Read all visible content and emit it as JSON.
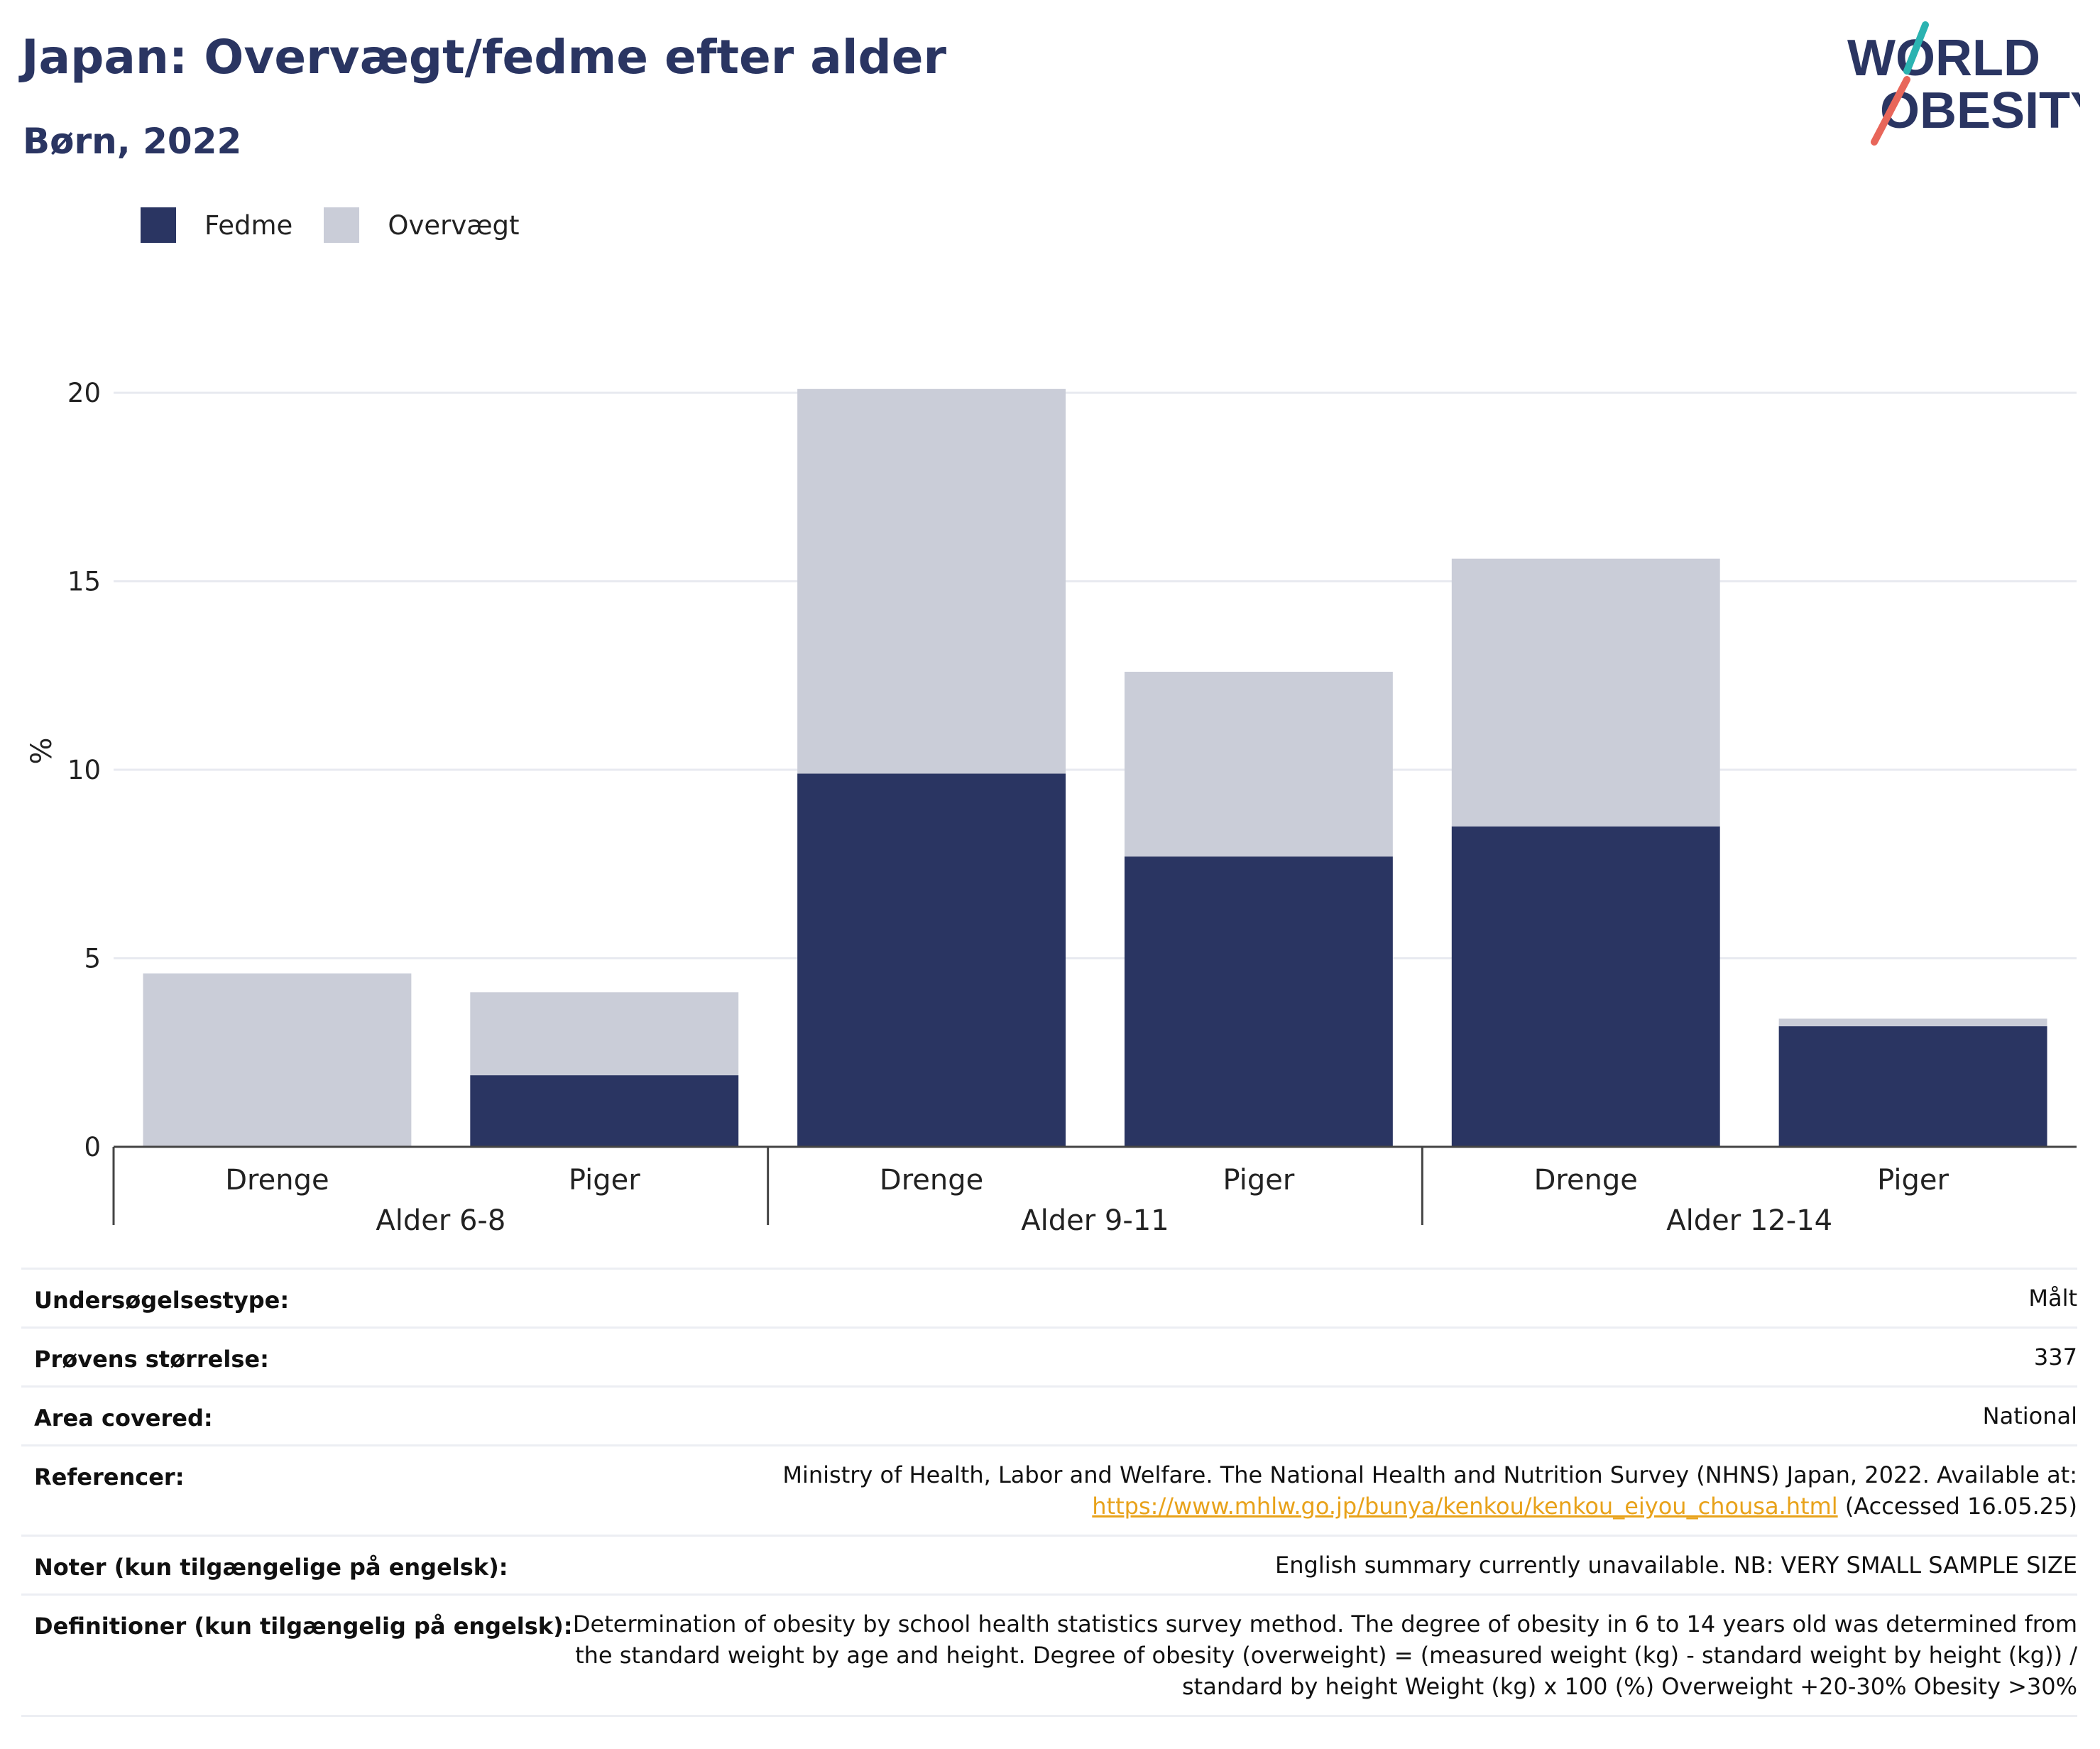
{
  "header": {
    "title": "Japan: Overvægt/fedme efter alder",
    "subtitle": "Børn, 2022",
    "logo_line1": "WORLD",
    "logo_line2": "OBESITY"
  },
  "colors": {
    "fedme": "#2a3562",
    "overvaegt": "#cacdd8",
    "title": "#2a3562",
    "link": "#e8a21a",
    "logo_slash_teal": "#2bb3b1",
    "logo_slash_coral": "#e8665a"
  },
  "chart_data": {
    "type": "bar",
    "stacked": true,
    "ylabel": "%",
    "ylim": [
      0,
      21
    ],
    "yticks": [
      0,
      5,
      10,
      15,
      20
    ],
    "grid": true,
    "legend_position": "top-left",
    "categories": [
      "Drenge",
      "Piger",
      "Drenge",
      "Piger",
      "Drenge",
      "Piger"
    ],
    "groups": [
      {
        "label": "Alder 6-8",
        "span": [
          0,
          1
        ]
      },
      {
        "label": "Alder 9-11",
        "span": [
          2,
          3
        ]
      },
      {
        "label": "Alder 12-14",
        "span": [
          4,
          5
        ]
      }
    ],
    "series": [
      {
        "name": "Fedme",
        "values": [
          0.0,
          1.9,
          9.9,
          7.7,
          8.5,
          3.2
        ]
      },
      {
        "name": "Overvægt",
        "values": [
          4.6,
          2.2,
          10.2,
          4.9,
          7.1,
          0.2
        ]
      }
    ]
  },
  "meta": [
    {
      "key": "Undersøgelsestype:",
      "value": "Målt"
    },
    {
      "key": "Prøvens størrelse:",
      "value": "337"
    },
    {
      "key": "Area covered:",
      "value": "National"
    },
    {
      "key": "Referencer:",
      "value": "Ministry of Health, Labor and Welfare. The National Health and Nutrition Survey (NHNS) Japan, 2022. Available at:",
      "link": "https://www.mhlw.go.jp/bunya/kenkou/kenkou_eiyou_chousa.html",
      "suffix": " (Accessed 16.05.25)"
    },
    {
      "key": "Noter (kun tilgængelige på engelsk):",
      "value": "English summary currently unavailable. NB: VERY SMALL SAMPLE SIZE"
    },
    {
      "key": "Definitioner (kun tilgængelig på engelsk):",
      "value": "Determination of obesity by school health statistics survey method. The degree of obesity in 6 to 14 years old was determined from the standard weight by age and height. Degree of obesity (overweight) = (measured weight (kg) - standard weight by height (kg)) / standard by height Weight (kg) x 100 (%) Overweight +20-30% Obesity >30%"
    }
  ]
}
